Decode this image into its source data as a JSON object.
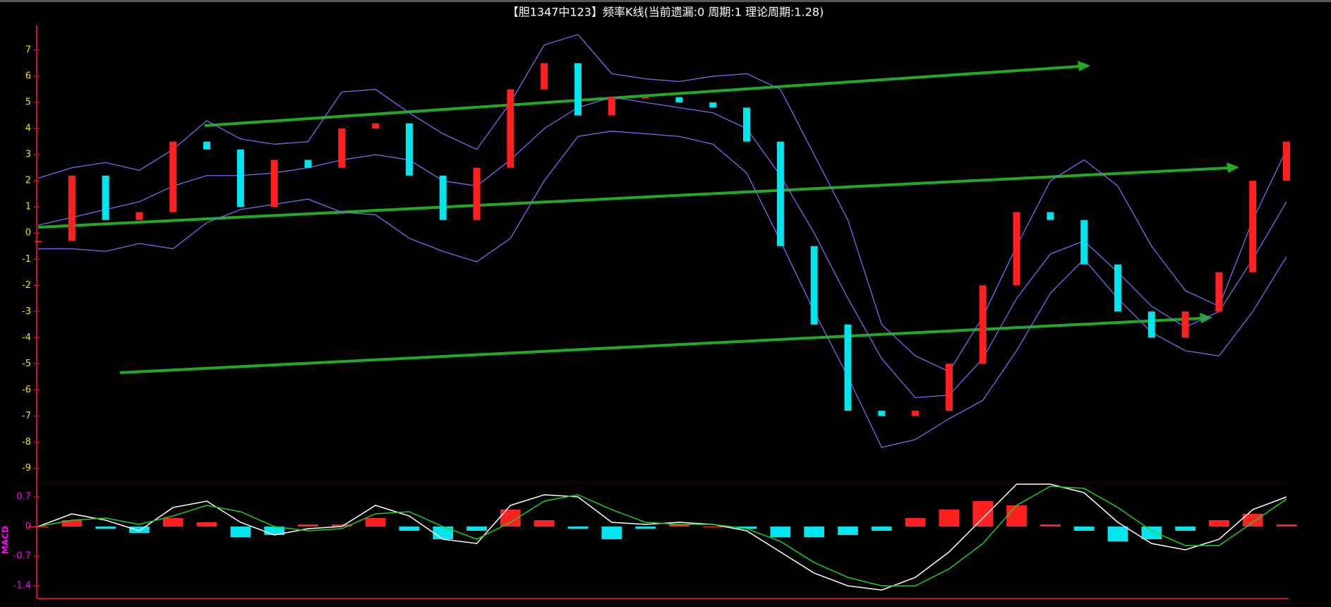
{
  "chart_data": [
    {
      "type": "kline",
      "title": "【胆1347中123】频率K线(当前遗漏:0 周期:1 理论周期:1.28)",
      "ylim": [
        -9.5,
        8
      ],
      "yticks": [
        7,
        6,
        5,
        4,
        3,
        2,
        1,
        0,
        -1,
        -2,
        -3,
        -4,
        -5,
        -6,
        -7,
        -8,
        -9
      ],
      "series": [
        {
          "up_color": "#ff2020",
          "down_color": "#00e5ee",
          "values": [
            -0.3,
            2.2,
            0.5,
            0.8,
            3.5,
            3.2,
            1.0,
            2.8,
            2.5,
            4.0,
            4.2,
            2.2,
            0.5,
            2.5,
            5.5,
            6.5,
            4.5,
            5.2,
            5.2,
            5.0,
            4.8,
            3.5,
            -0.5,
            -3.5,
            -6.8,
            -7.0,
            -6.8,
            -5.0,
            -2.0,
            0.8,
            0.5,
            -1.2,
            -3.0,
            -4.0,
            -3.0,
            -1.5,
            2.0,
            3.5
          ]
        },
        {
          "color": "#7b68ee",
          "values": [
            2.1,
            2.5,
            2.7,
            2.4,
            3.2,
            4.3,
            3.6,
            3.4,
            3.5,
            5.4,
            5.5,
            4.6,
            3.8,
            3.2,
            5.0,
            7.2,
            7.6,
            6.1,
            5.9,
            5.8,
            6.0,
            6.1,
            5.5,
            3.0,
            0.5,
            -3.5,
            -4.7,
            -5.3,
            -3.2,
            -0.5,
            2.0,
            2.8,
            1.8,
            -0.5,
            -2.2,
            -2.8,
            0.5,
            3.2
          ]
        },
        {
          "color": "#7b68ee",
          "values": [
            0.3,
            0.6,
            0.9,
            1.2,
            1.8,
            2.2,
            2.2,
            2.3,
            2.5,
            2.8,
            3.0,
            2.8,
            2.0,
            1.8,
            2.8,
            4.0,
            4.8,
            5.2,
            5.0,
            4.8,
            4.6,
            4.0,
            2.2,
            0,
            -2.5,
            -4.8,
            -6.3,
            -6.2,
            -4.8,
            -2.5,
            -0.8,
            -0.3,
            -1.5,
            -2.8,
            -3.6,
            -3.0,
            -1.0,
            1.2
          ]
        },
        {
          "color": "#7b68ee",
          "values": [
            -0.6,
            -0.6,
            -0.7,
            -0.4,
            -0.6,
            0.4,
            0.9,
            1.1,
            1.3,
            0.8,
            0.7,
            -0.2,
            -0.7,
            -1.1,
            -0.2,
            2.0,
            3.7,
            3.9,
            3.8,
            3.7,
            3.4,
            2.3,
            -0.3,
            -3.0,
            -5.5,
            -8.2,
            -7.9,
            -7.1,
            -6.4,
            -4.5,
            -2.3,
            -1.0,
            -2.5,
            -3.8,
            -4.5,
            -4.7,
            -3.0,
            -0.9
          ]
        }
      ]
    },
    {
      "type": "macd",
      "ylabel": "MACD",
      "ylim": [
        -1.6,
        1.0
      ],
      "yticks": [
        0.7,
        0,
        -0.7,
        -1.4
      ],
      "histogram": {
        "up_color": "#ff2020",
        "down_color": "#00e5ee",
        "values": [
          0,
          0.15,
          -0.05,
          -0.15,
          0.2,
          0.1,
          -0.25,
          -0.2,
          0.05,
          0.05,
          0.2,
          -0.1,
          -0.3,
          -0.1,
          0.4,
          0.15,
          -0.05,
          -0.3,
          -0.05,
          0.05,
          0,
          -0.05,
          -0.25,
          -0.25,
          -0.2,
          -0.1,
          0.2,
          0.4,
          0.6,
          0.5,
          0.05,
          -0.1,
          -0.35,
          -0.3,
          -0.1,
          0.15,
          0.3,
          0.05
        ]
      },
      "series": [
        {
          "color": "#ffffff",
          "values": [
            0,
            0.3,
            0.15,
            -0.1,
            0.45,
            0.6,
            0.1,
            -0.2,
            -0.05,
            0.0,
            0.5,
            0.25,
            -0.3,
            -0.4,
            0.5,
            0.75,
            0.7,
            0.1,
            0.05,
            0.1,
            0.05,
            -0.1,
            -0.6,
            -1.1,
            -1.4,
            -1.5,
            -1.2,
            -0.6,
            0.2,
            1.0,
            1.0,
            0.8,
            0.1,
            -0.4,
            -0.55,
            -0.3,
            0.4,
            0.7
          ]
        },
        {
          "color": "#22cc22",
          "values": [
            0,
            0.15,
            0.2,
            0.05,
            0.25,
            0.5,
            0.35,
            0.0,
            -0.1,
            -0.05,
            0.3,
            0.35,
            0.0,
            -0.3,
            0.1,
            0.6,
            0.75,
            0.4,
            0.1,
            0.05,
            0.05,
            -0.05,
            -0.35,
            -0.85,
            -1.2,
            -1.4,
            -1.4,
            -1.0,
            -0.4,
            0.5,
            0.95,
            0.9,
            0.45,
            -0.1,
            -0.45,
            -0.45,
            0.1,
            0.65
          ]
        }
      ]
    }
  ]
}
